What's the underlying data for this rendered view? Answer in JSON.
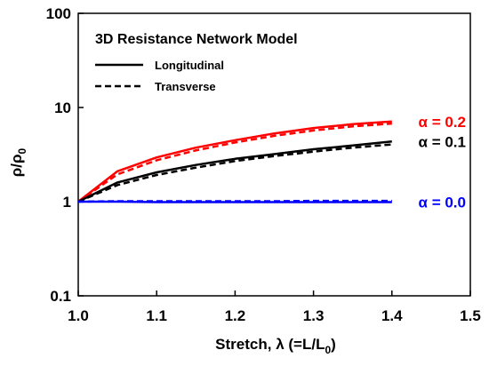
{
  "chart_data": {
    "type": "line",
    "title": "3D Resistance Network Model",
    "xlabel": {
      "main": "Stretch, λ (=L/L",
      "sub": "0",
      "end": ")"
    },
    "ylabel": {
      "main": "ρ/ρ",
      "sub": "0"
    },
    "xlim": [
      1.0,
      1.5
    ],
    "ylim": [
      0.1,
      100
    ],
    "yscale": "log",
    "x_ticks": [
      "1.0",
      "1.1",
      "1.2",
      "1.3",
      "1.4",
      "1.5"
    ],
    "y_ticks": [
      "0.1",
      "1",
      "10",
      "100"
    ],
    "grid": false,
    "legend": {
      "position": "top-left",
      "entries": [
        {
          "label": "Longitudinal",
          "style": "solid"
        },
        {
          "label": "Transverse",
          "style": "dashed"
        }
      ]
    },
    "x": [
      1.0,
      1.05,
      1.1,
      1.15,
      1.2,
      1.25,
      1.3,
      1.35,
      1.4
    ],
    "series": [
      {
        "name": "α = 0.2",
        "orientation": "Longitudinal",
        "color": "#ff0000",
        "style": "solid",
        "values": [
          1.0,
          2.1,
          2.95,
          3.75,
          4.5,
          5.3,
          6.05,
          6.65,
          7.1
        ]
      },
      {
        "name": "α = 0.2",
        "orientation": "Transverse",
        "color": "#ff0000",
        "style": "dashed",
        "values": [
          1.0,
          1.95,
          2.75,
          3.5,
          4.25,
          5.0,
          5.7,
          6.3,
          6.75
        ]
      },
      {
        "name": "α = 0.1",
        "orientation": "Longitudinal",
        "color": "#000000",
        "style": "solid",
        "values": [
          1.0,
          1.6,
          2.05,
          2.45,
          2.85,
          3.2,
          3.6,
          3.95,
          4.35
        ]
      },
      {
        "name": "α = 0.1",
        "orientation": "Transverse",
        "color": "#000000",
        "style": "dashed",
        "values": [
          1.0,
          1.5,
          1.92,
          2.3,
          2.7,
          3.05,
          3.4,
          3.75,
          4.05
        ]
      },
      {
        "name": "α = 0.0",
        "orientation": "Longitudinal",
        "color": "#0000ff",
        "style": "solid",
        "values": [
          1.0,
          1.0,
          0.99,
          0.99,
          0.99,
          0.99,
          0.99,
          0.99,
          0.99
        ]
      },
      {
        "name": "α = 0.0",
        "orientation": "Transverse",
        "color": "#0000ff",
        "style": "dashed",
        "values": [
          1.0,
          1.01,
          1.01,
          1.01,
          1.01,
          1.01,
          1.02,
          1.02,
          1.02
        ]
      }
    ],
    "annotations": [
      {
        "text": "α = 0.2",
        "color": "#ff0000",
        "series_index": 0
      },
      {
        "text": "α = 0.1",
        "color": "#000000",
        "series_index": 2
      },
      {
        "text": "α = 0.0",
        "color": "#0000ff",
        "series_index": 4
      }
    ]
  }
}
